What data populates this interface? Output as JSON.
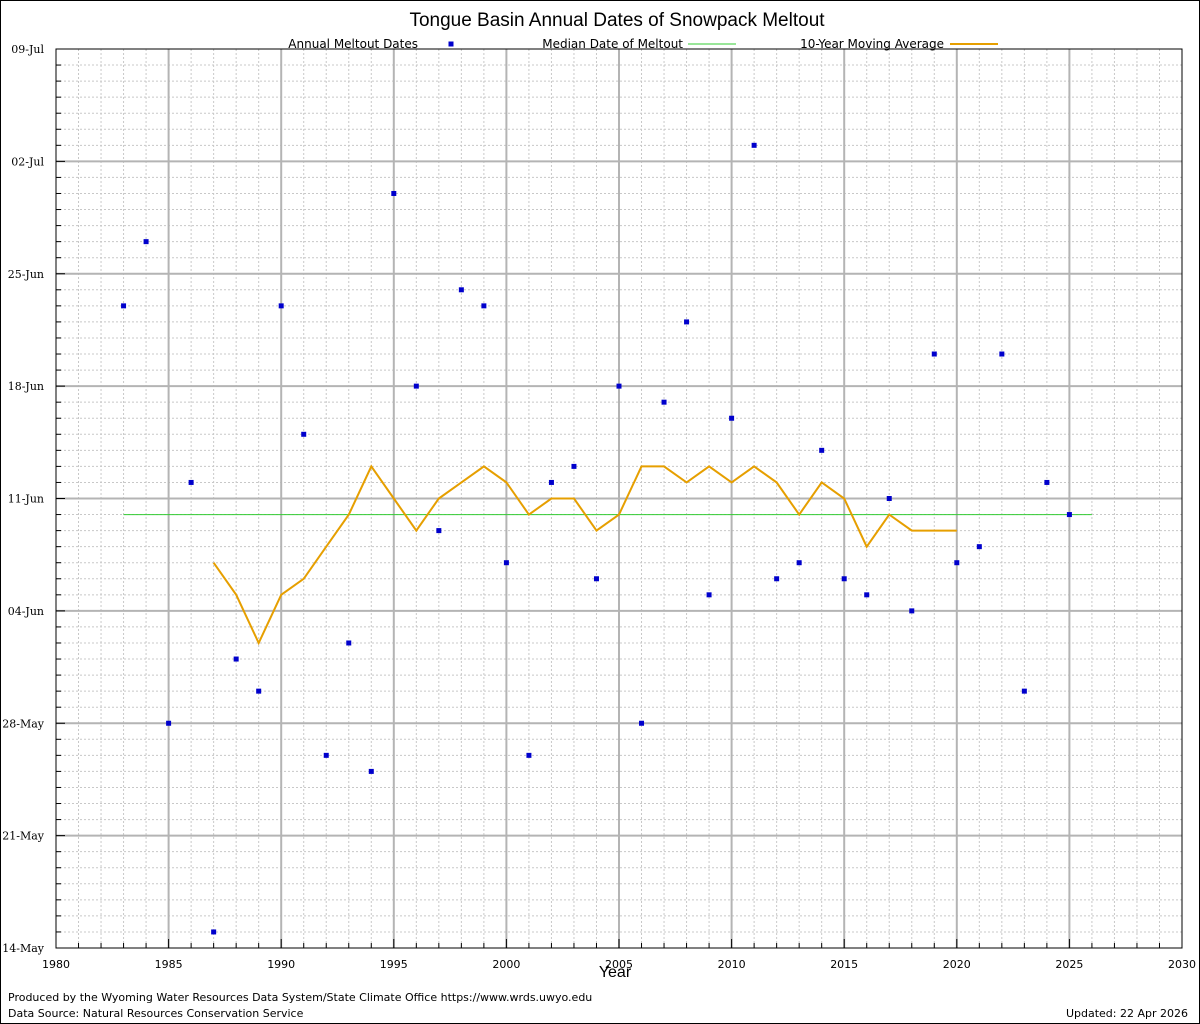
{
  "chart_data": {
    "type": "scatter",
    "title": "Tongue Basin Annual Dates of Snowpack Meltout",
    "xlabel": "Year",
    "ylabel": "",
    "xlim": [
      1980,
      2030
    ],
    "ylim": [
      "14-May",
      "09-Jul"
    ],
    "x_ticks": [
      "1980",
      "1985",
      "1990",
      "1995",
      "2000",
      "2005",
      "2010",
      "2015",
      "2020",
      "2025",
      "2030"
    ],
    "y_ticks": [
      "14-May",
      "21-May",
      "28-May",
      "04-Jun",
      "11-Jun",
      "18-Jun",
      "25-Jun",
      "02-Jul",
      "09-Jul"
    ],
    "grid": true,
    "legend_position": "top",
    "series": [
      {
        "name": "Annual Meltout Dates",
        "kind": "scatter",
        "color": "#0000cc",
        "points": [
          {
            "x": 1983,
            "y": "23-Jun"
          },
          {
            "x": 1984,
            "y": "27-Jun"
          },
          {
            "x": 1985,
            "y": "28-May"
          },
          {
            "x": 1986,
            "y": "12-Jun"
          },
          {
            "x": 1987,
            "y": "15-May"
          },
          {
            "x": 1988,
            "y": "01-Jun"
          },
          {
            "x": 1989,
            "y": "30-May"
          },
          {
            "x": 1990,
            "y": "23-Jun"
          },
          {
            "x": 1991,
            "y": "15-Jun"
          },
          {
            "x": 1992,
            "y": "26-May"
          },
          {
            "x": 1993,
            "y": "02-Jun"
          },
          {
            "x": 1994,
            "y": "25-May"
          },
          {
            "x": 1995,
            "y": "30-Jun"
          },
          {
            "x": 1996,
            "y": "18-Jun"
          },
          {
            "x": 1997,
            "y": "09-Jun"
          },
          {
            "x": 1998,
            "y": "24-Jun"
          },
          {
            "x": 1999,
            "y": "23-Jun"
          },
          {
            "x": 2000,
            "y": "07-Jun"
          },
          {
            "x": 2001,
            "y": "26-May"
          },
          {
            "x": 2002,
            "y": "12-Jun"
          },
          {
            "x": 2003,
            "y": "13-Jun"
          },
          {
            "x": 2004,
            "y": "06-Jun"
          },
          {
            "x": 2005,
            "y": "18-Jun"
          },
          {
            "x": 2006,
            "y": "28-May"
          },
          {
            "x": 2007,
            "y": "17-Jun"
          },
          {
            "x": 2008,
            "y": "22-Jun"
          },
          {
            "x": 2009,
            "y": "05-Jun"
          },
          {
            "x": 2010,
            "y": "16-Jun"
          },
          {
            "x": 2011,
            "y": "03-Jul"
          },
          {
            "x": 2012,
            "y": "06-Jun"
          },
          {
            "x": 2013,
            "y": "07-Jun"
          },
          {
            "x": 2014,
            "y": "14-Jun"
          },
          {
            "x": 2015,
            "y": "06-Jun"
          },
          {
            "x": 2016,
            "y": "05-Jun"
          },
          {
            "x": 2017,
            "y": "11-Jun"
          },
          {
            "x": 2018,
            "y": "04-Jun"
          },
          {
            "x": 2019,
            "y": "20-Jun"
          },
          {
            "x": 2020,
            "y": "07-Jun"
          },
          {
            "x": 2021,
            "y": "08-Jun"
          },
          {
            "x": 2022,
            "y": "20-Jun"
          },
          {
            "x": 2023,
            "y": "30-May"
          },
          {
            "x": 2024,
            "y": "12-Jun"
          },
          {
            "x": 2025,
            "y": "10-Jun"
          }
        ]
      },
      {
        "name": "Median Date of Meltout",
        "kind": "line",
        "color": "#33cc33",
        "points": [
          {
            "x": 1983,
            "y": "10-Jun"
          },
          {
            "x": 2026,
            "y": "10-Jun"
          }
        ]
      },
      {
        "name": "10-Year Moving Average",
        "kind": "line",
        "color": "#e69f00",
        "points": [
          {
            "x": 1987,
            "y": "07-Jun"
          },
          {
            "x": 1988,
            "y": "05-Jun"
          },
          {
            "x": 1989,
            "y": "02-Jun"
          },
          {
            "x": 1990,
            "y": "05-Jun"
          },
          {
            "x": 1991,
            "y": "06-Jun"
          },
          {
            "x": 1992,
            "y": "08-Jun"
          },
          {
            "x": 1993,
            "y": "10-Jun"
          },
          {
            "x": 1994,
            "y": "13-Jun"
          },
          {
            "x": 1995,
            "y": "11-Jun"
          },
          {
            "x": 1996,
            "y": "09-Jun"
          },
          {
            "x": 1997,
            "y": "11-Jun"
          },
          {
            "x": 1998,
            "y": "12-Jun"
          },
          {
            "x": 1999,
            "y": "13-Jun"
          },
          {
            "x": 2000,
            "y": "12-Jun"
          },
          {
            "x": 2001,
            "y": "10-Jun"
          },
          {
            "x": 2002,
            "y": "11-Jun"
          },
          {
            "x": 2003,
            "y": "11-Jun"
          },
          {
            "x": 2004,
            "y": "09-Jun"
          },
          {
            "x": 2005,
            "y": "10-Jun"
          },
          {
            "x": 2006,
            "y": "13-Jun"
          },
          {
            "x": 2007,
            "y": "13-Jun"
          },
          {
            "x": 2008,
            "y": "12-Jun"
          },
          {
            "x": 2009,
            "y": "13-Jun"
          },
          {
            "x": 2010,
            "y": "12-Jun"
          },
          {
            "x": 2011,
            "y": "13-Jun"
          },
          {
            "x": 2012,
            "y": "12-Jun"
          },
          {
            "x": 2013,
            "y": "10-Jun"
          },
          {
            "x": 2014,
            "y": "12-Jun"
          },
          {
            "x": 2015,
            "y": "11-Jun"
          },
          {
            "x": 2016,
            "y": "08-Jun"
          },
          {
            "x": 2017,
            "y": "10-Jun"
          },
          {
            "x": 2018,
            "y": "09-Jun"
          },
          {
            "x": 2019,
            "y": "09-Jun"
          },
          {
            "x": 2020,
            "y": "09-Jun"
          }
        ]
      }
    ]
  },
  "footer": {
    "produced_by": "Produced by the Wyoming Water Resources Data System/State Climate Office https://www.wrds.uwyo.edu",
    "data_source": "Data Source: Natural Resources Conservation Service",
    "updated": "Updated: 22 Apr 2026"
  }
}
